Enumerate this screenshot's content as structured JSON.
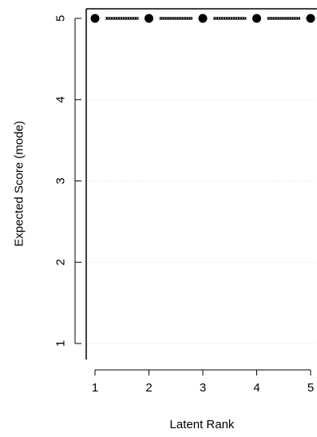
{
  "chart_data": {
    "type": "line",
    "title": "",
    "xlabel": "Latent Rank",
    "ylabel": "Expected Score (mode)",
    "x": [
      1,
      2,
      3,
      4,
      5
    ],
    "x_tick_labels": [
      "1",
      "2",
      "3",
      "4",
      "5"
    ],
    "y_tick_labels": [
      "1",
      "2",
      "3",
      "4",
      "5"
    ],
    "series": [
      {
        "values": [
          5,
          5,
          5,
          5,
          5
        ]
      }
    ],
    "xlim": [
      1,
      5
    ],
    "ylim": [
      1,
      5
    ],
    "grid": "horizontal dotted",
    "line_style": "dotted with white gaps between points",
    "marker": "filled circle",
    "colors": {
      "line": "#000000",
      "grid": "#d3d3d3",
      "axis": "#000000"
    }
  }
}
